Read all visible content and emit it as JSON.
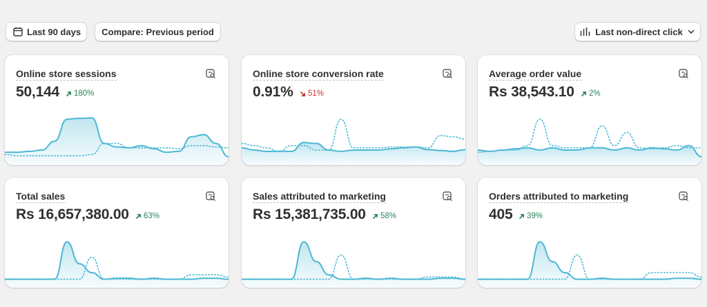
{
  "toolbar": {
    "date_range_label": "Last 90 days",
    "compare_label": "Compare: Previous period",
    "attribution_label": "Last non-direct click"
  },
  "colors": {
    "accent": "#4bb7d4",
    "positive": "#29845a",
    "negative": "#c8302d"
  },
  "metrics": [
    {
      "title": "Online store sessions",
      "value": "50,144",
      "change": "180%",
      "trend": "up",
      "current": [
        0.2,
        0.2,
        0.22,
        0.25,
        0.45,
        0.95,
        0.97,
        0.98,
        0.4,
        0.32,
        0.3,
        0.35,
        0.28,
        0.2,
        0.22,
        0.55,
        0.6,
        0.4,
        0.1
      ],
      "previous": [
        0.15,
        0.12,
        0.12,
        0.12,
        0.12,
        0.12,
        0.12,
        0.15,
        0.4,
        0.4,
        0.3,
        0.3,
        0.3,
        0.3,
        0.28,
        0.35,
        0.35,
        0.32,
        0.3
      ]
    },
    {
      "title": "Online store conversion rate",
      "value": "0.91%",
      "change": "51%",
      "trend": "down",
      "current": [
        0.3,
        0.25,
        0.22,
        0.22,
        0.22,
        0.42,
        0.4,
        0.25,
        0.22,
        0.25,
        0.25,
        0.25,
        0.28,
        0.3,
        0.32,
        0.26,
        0.24,
        0.22,
        0.26
      ],
      "previous": [
        0.4,
        0.35,
        0.3,
        0.22,
        0.35,
        0.35,
        0.25,
        0.25,
        0.95,
        0.3,
        0.3,
        0.3,
        0.32,
        0.32,
        0.32,
        0.3,
        0.58,
        0.55,
        0.5
      ]
    },
    {
      "title": "Average order value",
      "value": "Rs 38,543.10",
      "change": "2%",
      "trend": "up",
      "current": [
        0.25,
        0.22,
        0.25,
        0.28,
        0.3,
        0.25,
        0.3,
        0.25,
        0.25,
        0.3,
        0.3,
        0.25,
        0.3,
        0.25,
        0.3,
        0.28,
        0.25,
        0.35,
        0.1
      ],
      "previous": [
        0.2,
        0.22,
        0.25,
        0.25,
        0.35,
        0.95,
        0.35,
        0.3,
        0.3,
        0.3,
        0.8,
        0.35,
        0.65,
        0.3,
        0.28,
        0.3,
        0.35,
        0.3,
        0.3
      ]
    },
    {
      "title": "Total sales",
      "value": "Rs 16,657,380.00",
      "change": "63%",
      "trend": "up",
      "current": [
        0.1,
        0.1,
        0.1,
        0.1,
        0.1,
        0.95,
        0.45,
        0.25,
        0.1,
        0.12,
        0.12,
        0.1,
        0.12,
        0.1,
        0.1,
        0.1,
        0.12,
        0.12,
        0.1
      ],
      "previous": [
        0.1,
        0.1,
        0.1,
        0.1,
        0.1,
        0.1,
        0.1,
        0.6,
        0.1,
        0.1,
        0.1,
        0.1,
        0.1,
        0.1,
        0.1,
        0.2,
        0.2,
        0.2,
        0.15
      ]
    },
    {
      "title": "Sales attributed to marketing",
      "value": "Rs 15,381,735.00",
      "change": "58%",
      "trend": "up",
      "current": [
        0.1,
        0.1,
        0.1,
        0.1,
        0.1,
        0.95,
        0.5,
        0.2,
        0.1,
        0.1,
        0.12,
        0.1,
        0.12,
        0.1,
        0.1,
        0.1,
        0.12,
        0.12,
        0.1
      ],
      "previous": [
        0.1,
        0.1,
        0.1,
        0.1,
        0.1,
        0.1,
        0.1,
        0.1,
        0.65,
        0.1,
        0.1,
        0.1,
        0.1,
        0.1,
        0.1,
        0.15,
        0.15,
        0.15,
        0.1
      ]
    },
    {
      "title": "Orders attributed to marketing",
      "value": "405",
      "change": "39%",
      "trend": "up",
      "current": [
        0.1,
        0.1,
        0.1,
        0.1,
        0.1,
        0.95,
        0.5,
        0.25,
        0.1,
        0.1,
        0.12,
        0.1,
        0.1,
        0.1,
        0.1,
        0.1,
        0.12,
        0.12,
        0.1
      ],
      "previous": [
        0.1,
        0.1,
        0.1,
        0.1,
        0.1,
        0.1,
        0.1,
        0.1,
        0.65,
        0.1,
        0.1,
        0.1,
        0.1,
        0.1,
        0.25,
        0.25,
        0.25,
        0.25,
        0.15
      ]
    }
  ]
}
